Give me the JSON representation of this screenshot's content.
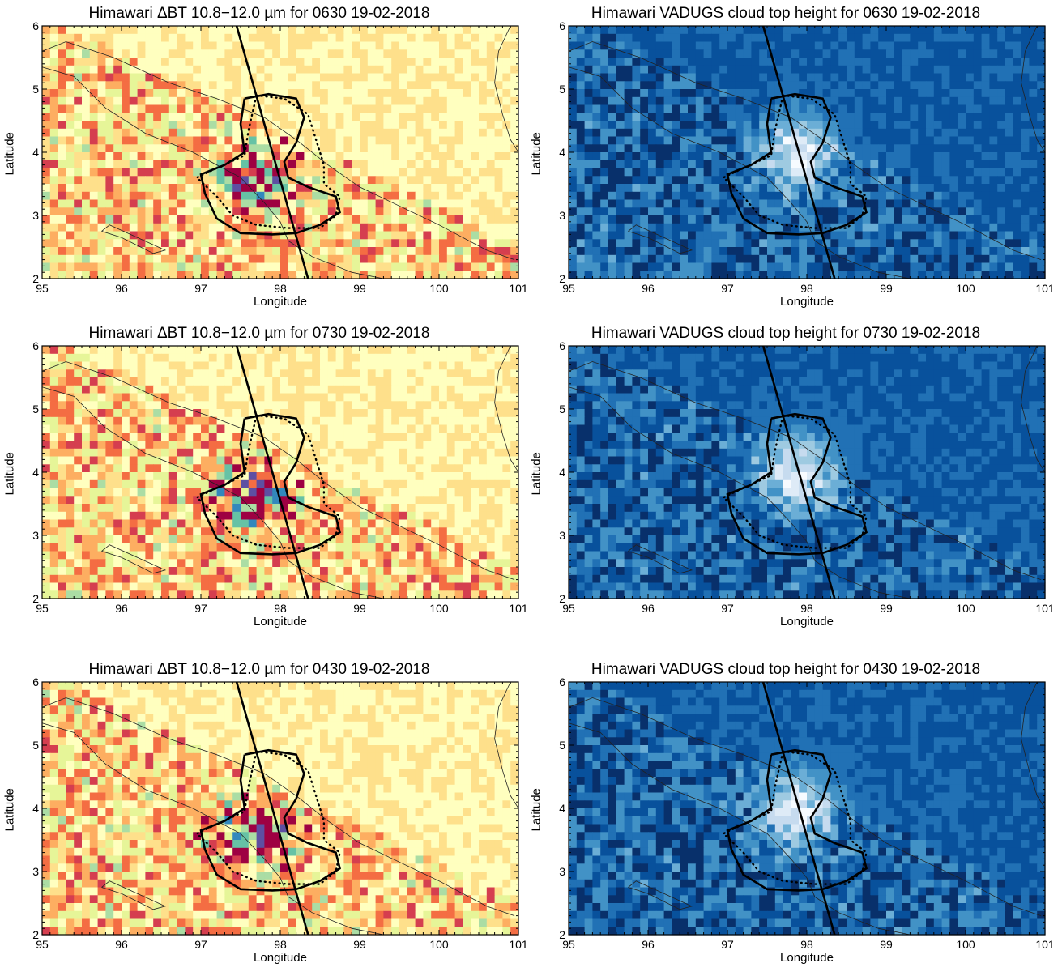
{
  "panels": [
    {
      "title": "Himawari ΔBT 10.8−12.0 µm for 0630 19-02-2018",
      "xlabel": "Longitude",
      "ylabel": "Latitude",
      "colormap": "spectral",
      "time": "0630"
    },
    {
      "title": "Himawari VADUGS cloud top height for 0630 19-02-2018",
      "xlabel": "Longitude",
      "ylabel": "Latitude",
      "colormap": "blues",
      "time": "0630"
    },
    {
      "title": "Himawari ΔBT 10.8−12.0 µm for 0730 19-02-2018",
      "xlabel": "Longitude",
      "ylabel": "Latitude",
      "colormap": "spectral",
      "time": "0730"
    },
    {
      "title": "Himawari VADUGS cloud top height for 0730 19-02-2018",
      "xlabel": "Longitude",
      "ylabel": "Latitude",
      "colormap": "blues",
      "time": "0730"
    },
    {
      "title": "Himawari ΔBT 10.8−12.0 µm for 0430 19-02-2018",
      "xlabel": "Longitude",
      "ylabel": "Latitude",
      "colormap": "spectral",
      "time": "0430"
    },
    {
      "title": "Himawari VADUGS cloud top height for 0430 19-02-2018",
      "xlabel": "Longitude",
      "ylabel": "Latitude",
      "colormap": "blues",
      "time": "0430"
    }
  ],
  "chart_data": {
    "type": "heatmap",
    "x_ticks": [
      "95",
      "96",
      "97",
      "98",
      "99",
      "100",
      "101"
    ],
    "y_ticks": [
      "2",
      "3",
      "4",
      "5",
      "6"
    ],
    "xlim": [
      95,
      101
    ],
    "ylim": [
      2,
      6
    ],
    "overlays": {
      "track_line": [
        [
          97.45,
          6.0
        ],
        [
          98.35,
          2.0
        ]
      ],
      "solid_contour": [
        [
          97.55,
          4.85
        ],
        [
          97.85,
          4.92
        ],
        [
          98.2,
          4.85
        ],
        [
          98.3,
          4.55
        ],
        [
          98.2,
          4.15
        ],
        [
          98.05,
          3.85
        ],
        [
          98.1,
          3.6
        ],
        [
          98.35,
          3.45
        ],
        [
          98.7,
          3.3
        ],
        [
          98.75,
          3.05
        ],
        [
          98.5,
          2.85
        ],
        [
          98.2,
          2.72
        ],
        [
          97.9,
          2.7
        ],
        [
          97.5,
          2.72
        ],
        [
          97.2,
          2.95
        ],
        [
          97.05,
          3.35
        ],
        [
          97.0,
          3.65
        ],
        [
          97.3,
          3.8
        ],
        [
          97.55,
          4.0
        ],
        [
          97.5,
          4.45
        ],
        [
          97.55,
          4.85
        ]
      ],
      "dotted_contour": [
        [
          97.7,
          4.9
        ],
        [
          98.05,
          4.85
        ],
        [
          98.35,
          4.6
        ],
        [
          98.45,
          4.2
        ],
        [
          98.55,
          3.8
        ],
        [
          98.55,
          3.5
        ],
        [
          98.75,
          3.3
        ],
        [
          98.7,
          3.0
        ],
        [
          98.5,
          2.8
        ],
        [
          98.1,
          2.8
        ],
        [
          97.7,
          2.85
        ],
        [
          97.4,
          3.0
        ],
        [
          97.2,
          3.3
        ],
        [
          96.95,
          3.6
        ],
        [
          97.2,
          3.75
        ],
        [
          97.55,
          3.95
        ],
        [
          97.6,
          4.35
        ],
        [
          97.7,
          4.9
        ]
      ]
    }
  }
}
